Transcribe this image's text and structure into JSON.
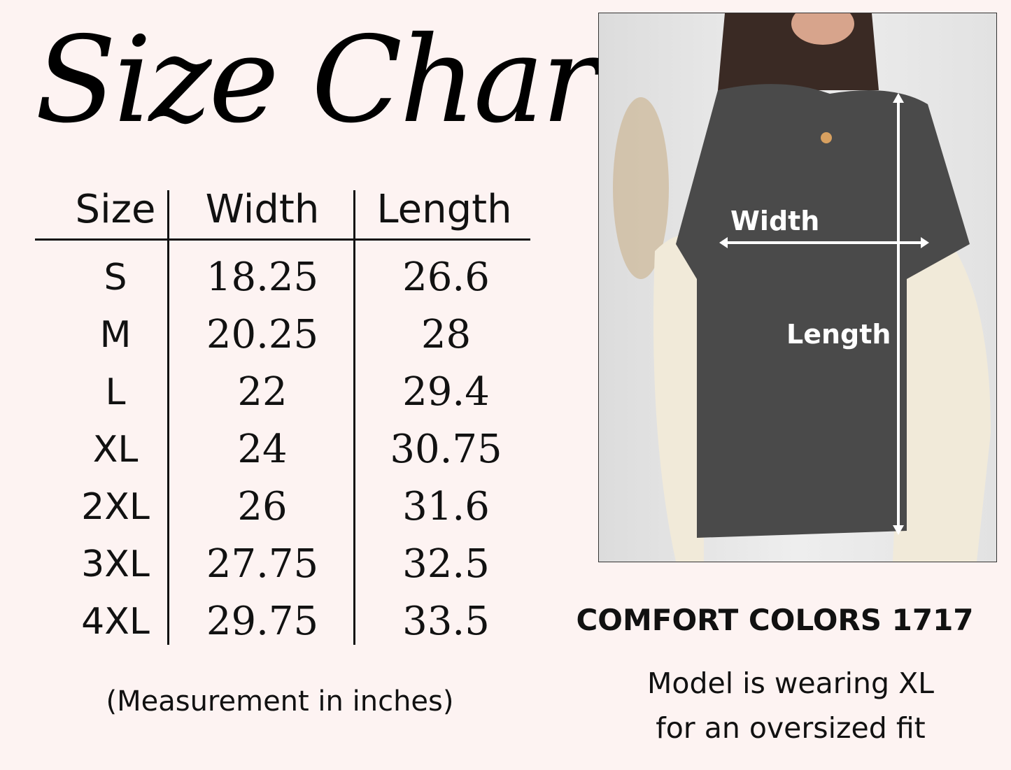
{
  "title": "Size Chart",
  "table": {
    "headers": [
      "Size",
      "Width",
      "Length"
    ],
    "rows": [
      {
        "size": "S",
        "width": "18.25",
        "length": "26.6"
      },
      {
        "size": "M",
        "width": "20.25",
        "length": "28"
      },
      {
        "size": "L",
        "width": "22",
        "length": "29.4"
      },
      {
        "size": "XL",
        "width": "24",
        "length": "30.75"
      },
      {
        "size": "2XL",
        "width": "26",
        "length": "31.6"
      },
      {
        "size": "3XL",
        "width": "27.75",
        "length": "32.5"
      },
      {
        "size": "4XL",
        "width": "29.75",
        "length": "33.5"
      }
    ]
  },
  "note": "(Measurement in inches)",
  "photo": {
    "width_label": "Width",
    "length_label": "Length"
  },
  "brand": "COMFORT COLORS 1717",
  "model_note": [
    "Model is wearing XL",
    "for an oversized fit"
  ]
}
